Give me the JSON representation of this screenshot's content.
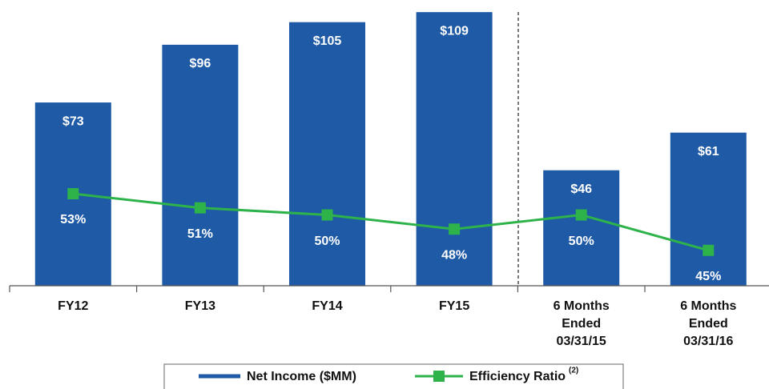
{
  "chart_data": {
    "type": "bar_line",
    "categories": [
      "FY12",
      "FY13",
      "FY14",
      "FY15",
      "6 Months Ended 03/31/15",
      "6 Months Ended 03/31/16"
    ],
    "series": [
      {
        "name": "Net Income ($MM)",
        "type": "bar",
        "color": "#1f5aa6",
        "values": [
          73,
          96,
          105,
          109,
          46,
          61
        ],
        "value_labels": [
          "$73",
          "$96",
          "$105",
          "$109",
          "$46",
          "$61"
        ]
      },
      {
        "name": "Efficiency Ratio",
        "type": "line",
        "axis": "y2",
        "color": "#2db34a",
        "values": [
          53,
          51,
          50,
          48,
          50,
          45
        ],
        "value_labels": [
          "53%",
          "51%",
          "50%",
          "48%",
          "50%",
          "45%"
        ]
      }
    ],
    "legend_footnote": "(2)",
    "ylim": [
      0,
      110
    ],
    "y2lim": [
      40,
      79
    ],
    "legend": "bottom"
  }
}
